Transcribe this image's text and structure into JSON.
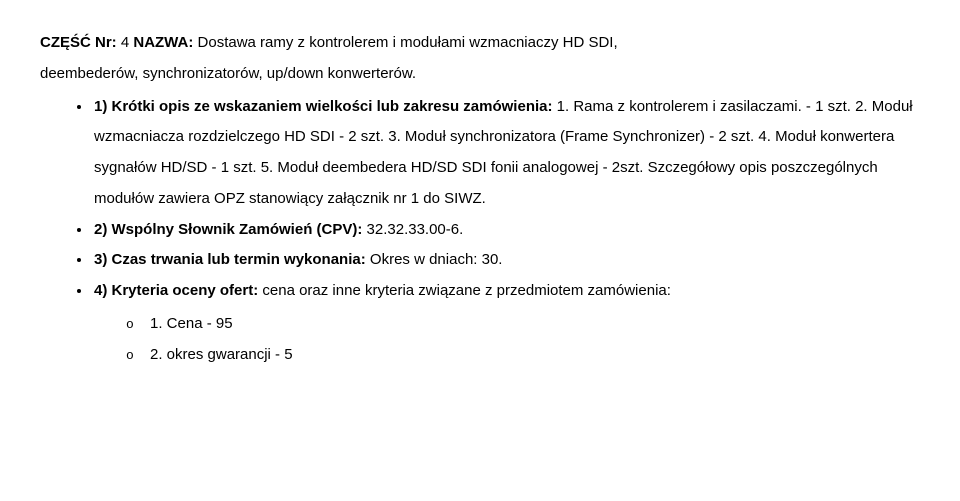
{
  "header": {
    "part_label": "CZĘŚĆ Nr:",
    "part_number": "4",
    "name_label": "NAZWA:",
    "name_text": "Dostawa ramy z kontrolerem i modułami wzmacniaczy HD SDI,",
    "name_cont": "deembederów, synchronizatorów, up/down konwerterów."
  },
  "item1": {
    "label": "1) Krótki opis ze wskazaniem wielkości lub zakresu zamówienia:",
    "text": "1. Rama z kontrolerem i zasilaczami. - 1 szt. 2. Moduł wzmacniacza rozdzielczego HD SDI - 2 szt. 3. Moduł synchronizatora (Frame Synchronizer) - 2 szt. 4. Moduł konwertera sygnałów HD/SD - 1 szt. 5. Moduł deembedera HD/SD SDI fonii analogowej - 2szt. Szczegółowy opis poszczególnych modułów zawiera OPZ stanowiący załącznik nr 1 do SIWZ."
  },
  "item2": {
    "label": "2) Wspólny Słownik Zamówień (CPV):",
    "text": "32.32.33.00-6."
  },
  "item3": {
    "label": "3) Czas trwania lub termin wykonania:",
    "text": "Okres w dniach: 30."
  },
  "item4": {
    "label": "4) Kryteria oceny ofert:",
    "text": "cena oraz inne kryteria związane z przedmiotem zamówienia:",
    "criteria": [
      "1. Cena - 95",
      "2. okres gwarancji - 5"
    ]
  }
}
